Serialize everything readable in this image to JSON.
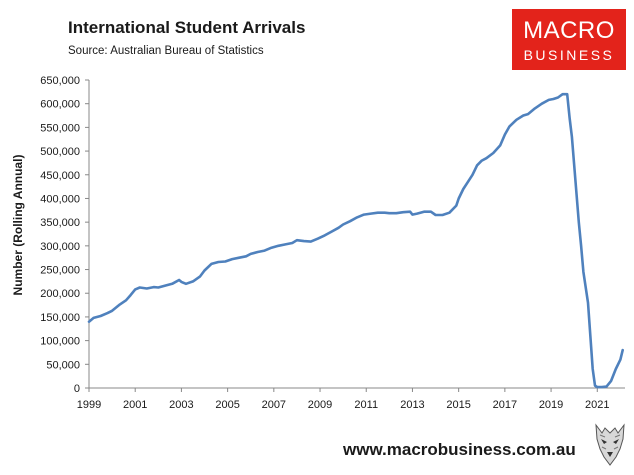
{
  "header": {
    "title": "International Student Arrivals",
    "source": "Source: Australian Bureau of Statistics"
  },
  "logo": {
    "line1": "MACRO",
    "line2": "BUSINESS",
    "color": "#e3231b"
  },
  "footer": {
    "url": "www.macrobusiness.com.au",
    "mascot_icon": "wolf-icon"
  },
  "chart_data": {
    "type": "line",
    "title": "International Student Arrivals",
    "ylabel": "Number (Rolling Annual)",
    "xlabel": "",
    "xlim": [
      1999.0,
      2022.2
    ],
    "ylim": [
      0,
      650000
    ],
    "grid": false,
    "legend": "none",
    "line_color": "#4f81bd",
    "y_ticks": [
      {
        "value": 0,
        "label": "0"
      },
      {
        "value": 50000,
        "label": "50,000"
      },
      {
        "value": 100000,
        "label": "100,000"
      },
      {
        "value": 150000,
        "label": "150,000"
      },
      {
        "value": 200000,
        "label": "200,000"
      },
      {
        "value": 250000,
        "label": "250,000"
      },
      {
        "value": 300000,
        "label": "300,000"
      },
      {
        "value": 350000,
        "label": "350,000"
      },
      {
        "value": 400000,
        "label": "400,000"
      },
      {
        "value": 450000,
        "label": "450,000"
      },
      {
        "value": 500000,
        "label": "500,000"
      },
      {
        "value": 550000,
        "label": "550,000"
      },
      {
        "value": 600000,
        "label": "600,000"
      },
      {
        "value": 650000,
        "label": "650,000"
      }
    ],
    "x_ticks": [
      {
        "value": 1999,
        "label": "1999"
      },
      {
        "value": 2001,
        "label": "2001"
      },
      {
        "value": 2003,
        "label": "2003"
      },
      {
        "value": 2005,
        "label": "2005"
      },
      {
        "value": 2007,
        "label": "2007"
      },
      {
        "value": 2009,
        "label": "2009"
      },
      {
        "value": 2011,
        "label": "2011"
      },
      {
        "value": 2013,
        "label": "2013"
      },
      {
        "value": 2015,
        "label": "2015"
      },
      {
        "value": 2017,
        "label": "2017"
      },
      {
        "value": 2019,
        "label": "2019"
      },
      {
        "value": 2021,
        "label": "2021"
      }
    ],
    "series": [
      {
        "x": [
          1999.0,
          1999.2,
          1999.5,
          1999.8,
          2000.0,
          2000.3,
          2000.6,
          2000.8,
          2001.0,
          2001.2,
          2001.5,
          2001.8,
          2002.0,
          2002.3,
          2002.6,
          2002.9,
          2003.0,
          2003.2,
          2003.5,
          2003.8,
          2004.0,
          2004.3,
          2004.6,
          2004.9,
          2005.2,
          2005.5,
          2005.8,
          2006.0,
          2006.3,
          2006.6,
          2006.9,
          2007.2,
          2007.5,
          2007.8,
          2008.0,
          2008.3,
          2008.6,
          2008.9,
          2009.2,
          2009.5,
          2009.8,
          2010.0,
          2010.3,
          2010.6,
          2010.9,
          2011.2,
          2011.5,
          2011.8,
          2012.0,
          2012.3,
          2012.6,
          2012.9,
          2013.0,
          2013.2,
          2013.5,
          2013.8,
          2014.0,
          2014.3,
          2014.6,
          2014.9,
          2015.0,
          2015.2,
          2015.4,
          2015.6,
          2015.8,
          2016.0,
          2016.2,
          2016.5,
          2016.8,
          2017.0,
          2017.2,
          2017.5,
          2017.8,
          2018.0,
          2018.3,
          2018.6,
          2018.9,
          2019.1,
          2019.3,
          2019.5,
          2019.7,
          2019.8,
          2019.9,
          2020.0,
          2020.2,
          2020.3,
          2020.4,
          2020.6,
          2020.8,
          2020.9,
          2021.0,
          2021.2,
          2021.4,
          2021.6,
          2021.8,
          2022.0,
          2022.1
        ],
        "y": [
          140000,
          148000,
          152000,
          158000,
          163000,
          175000,
          185000,
          196000,
          208000,
          212000,
          210000,
          213000,
          212000,
          216000,
          220000,
          228000,
          224000,
          220000,
          225000,
          235000,
          248000,
          262000,
          266000,
          267000,
          272000,
          275000,
          278000,
          283000,
          287000,
          290000,
          296000,
          300000,
          303000,
          306000,
          312000,
          310000,
          309000,
          315000,
          322000,
          330000,
          338000,
          345000,
          352000,
          360000,
          366000,
          368000,
          370000,
          370000,
          369000,
          369000,
          371000,
          372000,
          366000,
          368000,
          372000,
          372000,
          365000,
          365000,
          370000,
          385000,
          400000,
          420000,
          435000,
          450000,
          470000,
          480000,
          485000,
          496000,
          512000,
          535000,
          552000,
          566000,
          575000,
          578000,
          590000,
          600000,
          608000,
          610000,
          613000,
          620000,
          620000,
          570000,
          530000,
          470000,
          350000,
          300000,
          245000,
          180000,
          40000,
          5000,
          2000,
          2000,
          3000,
          15000,
          40000,
          60000,
          80000
        ]
      }
    ]
  }
}
